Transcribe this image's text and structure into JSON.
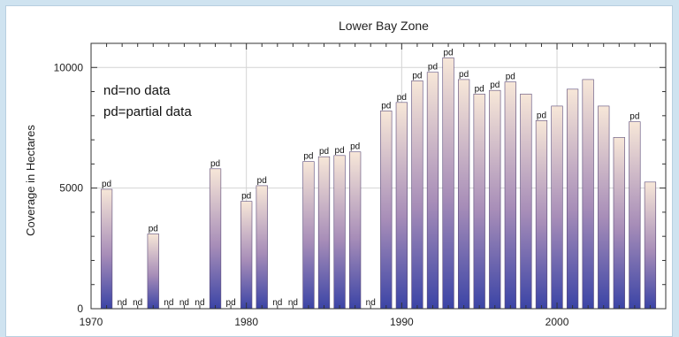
{
  "chart_data": {
    "type": "bar",
    "title": "Lower Bay Zone",
    "xlabel": "",
    "ylabel": "Coverage in Hectares",
    "xlim": [
      1970,
      2007
    ],
    "ylim": [
      0,
      11000
    ],
    "xticks": [
      1970,
      1980,
      1990,
      2000
    ],
    "yticks": [
      0,
      5000,
      10000
    ],
    "grid": true,
    "annotations": [
      "nd=no data",
      "pd=partial data"
    ],
    "gradient": {
      "top": "#f7e7d8",
      "bottom": "#3b44a6"
    },
    "bars": [
      {
        "year": 1971,
        "value": 4950,
        "label": "pd"
      },
      {
        "year": 1972,
        "value": 0,
        "label": "nd"
      },
      {
        "year": 1973,
        "value": 0,
        "label": "nd"
      },
      {
        "year": 1974,
        "value": 3100,
        "label": "pd"
      },
      {
        "year": 1975,
        "value": 0,
        "label": "nd"
      },
      {
        "year": 1976,
        "value": 0,
        "label": "nd"
      },
      {
        "year": 1977,
        "value": 0,
        "label": "nd"
      },
      {
        "year": 1978,
        "value": 5800,
        "label": "pd"
      },
      {
        "year": 1979,
        "value": 0,
        "label": "pd"
      },
      {
        "year": 1980,
        "value": 4450,
        "label": "pd"
      },
      {
        "year": 1981,
        "value": 5100,
        "label": "pd"
      },
      {
        "year": 1982,
        "value": 0,
        "label": "nd"
      },
      {
        "year": 1983,
        "value": 0,
        "label": "nd"
      },
      {
        "year": 1984,
        "value": 6100,
        "label": "pd"
      },
      {
        "year": 1985,
        "value": 6300,
        "label": "pd"
      },
      {
        "year": 1986,
        "value": 6350,
        "label": "pd"
      },
      {
        "year": 1987,
        "value": 6500,
        "label": "pd"
      },
      {
        "year": 1988,
        "value": 0,
        "label": "nd"
      },
      {
        "year": 1989,
        "value": 8200,
        "label": "pd"
      },
      {
        "year": 1990,
        "value": 8550,
        "label": "pd"
      },
      {
        "year": 1991,
        "value": 9450,
        "label": "pd"
      },
      {
        "year": 1992,
        "value": 9800,
        "label": "pd"
      },
      {
        "year": 1993,
        "value": 10400,
        "label": "pd"
      },
      {
        "year": 1994,
        "value": 9500,
        "label": "pd"
      },
      {
        "year": 1995,
        "value": 8900,
        "label": "pd"
      },
      {
        "year": 1996,
        "value": 9050,
        "label": "pd"
      },
      {
        "year": 1997,
        "value": 9400,
        "label": "pd"
      },
      {
        "year": 1998,
        "value": 8900,
        "label": ""
      },
      {
        "year": 1999,
        "value": 7800,
        "label": "pd"
      },
      {
        "year": 2000,
        "value": 8400,
        "label": ""
      },
      {
        "year": 2001,
        "value": 9100,
        "label": ""
      },
      {
        "year": 2002,
        "value": 9500,
        "label": ""
      },
      {
        "year": 2003,
        "value": 8400,
        "label": ""
      },
      {
        "year": 2004,
        "value": 7100,
        "label": ""
      },
      {
        "year": 2005,
        "value": 7750,
        "label": "pd"
      },
      {
        "year": 2006,
        "value": 5250,
        "label": ""
      }
    ]
  }
}
